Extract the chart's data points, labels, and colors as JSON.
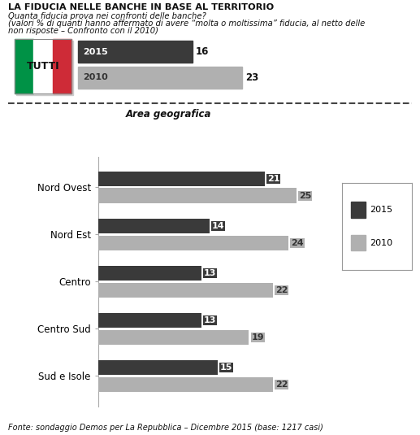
{
  "title": "LA FIDUCIA NELLE BANCHE IN BASE AL TERRITORIO",
  "subtitle1": "Quanta fiducia prova nei confronti delle banche?",
  "subtitle2": "(valori % di quanti hanno affermato di avere “molta o moltissima” fiducia, al netto delle",
  "subtitle3": "non risposte – Confronto con il 2010)",
  "footer": "Fonte: sondaggio Demos per La Repubblica – Dicembre 2015 (base: 1217 casi)",
  "tutti_2015": 16,
  "tutti_2010": 23,
  "categories": [
    "Nord Ovest",
    "Nord Est",
    "Centro",
    "Centro Sud",
    "Sud e Isole"
  ],
  "values_2015": [
    21,
    14,
    13,
    13,
    15
  ],
  "values_2010": [
    25,
    24,
    22,
    19,
    22
  ],
  "color_2015": "#3a3a3a",
  "color_2010": "#b0b0b0",
  "background": "#ffffff",
  "area_label": "Area geografica",
  "legend_2015": "2015",
  "legend_2010": "2010",
  "flag_green": "#009246",
  "flag_white": "#ffffff",
  "flag_red": "#ce2b37",
  "dash_color": "#444444",
  "spine_color": "#aaaaaa"
}
